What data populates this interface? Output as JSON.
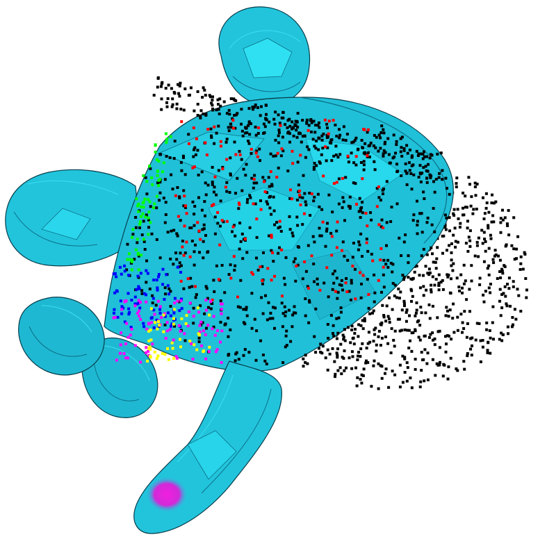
{
  "scene": {
    "background": "#ffffff",
    "mesh_color": "#22c4dc",
    "mesh_highlight": "#2ee6f4",
    "mesh_shadow": "#0b6f86",
    "mesh_edge": "#063d4a",
    "fingertip_color": "#e01ad8"
  },
  "point_cloud": {
    "default_color": "#000000",
    "segments": [
      {
        "color": "#000000"
      },
      {
        "color": "#ff0000"
      },
      {
        "color": "#00ff00"
      },
      {
        "color": "#0000ff"
      },
      {
        "color": "#ff00ff"
      },
      {
        "color": "#ffff00"
      }
    ]
  }
}
